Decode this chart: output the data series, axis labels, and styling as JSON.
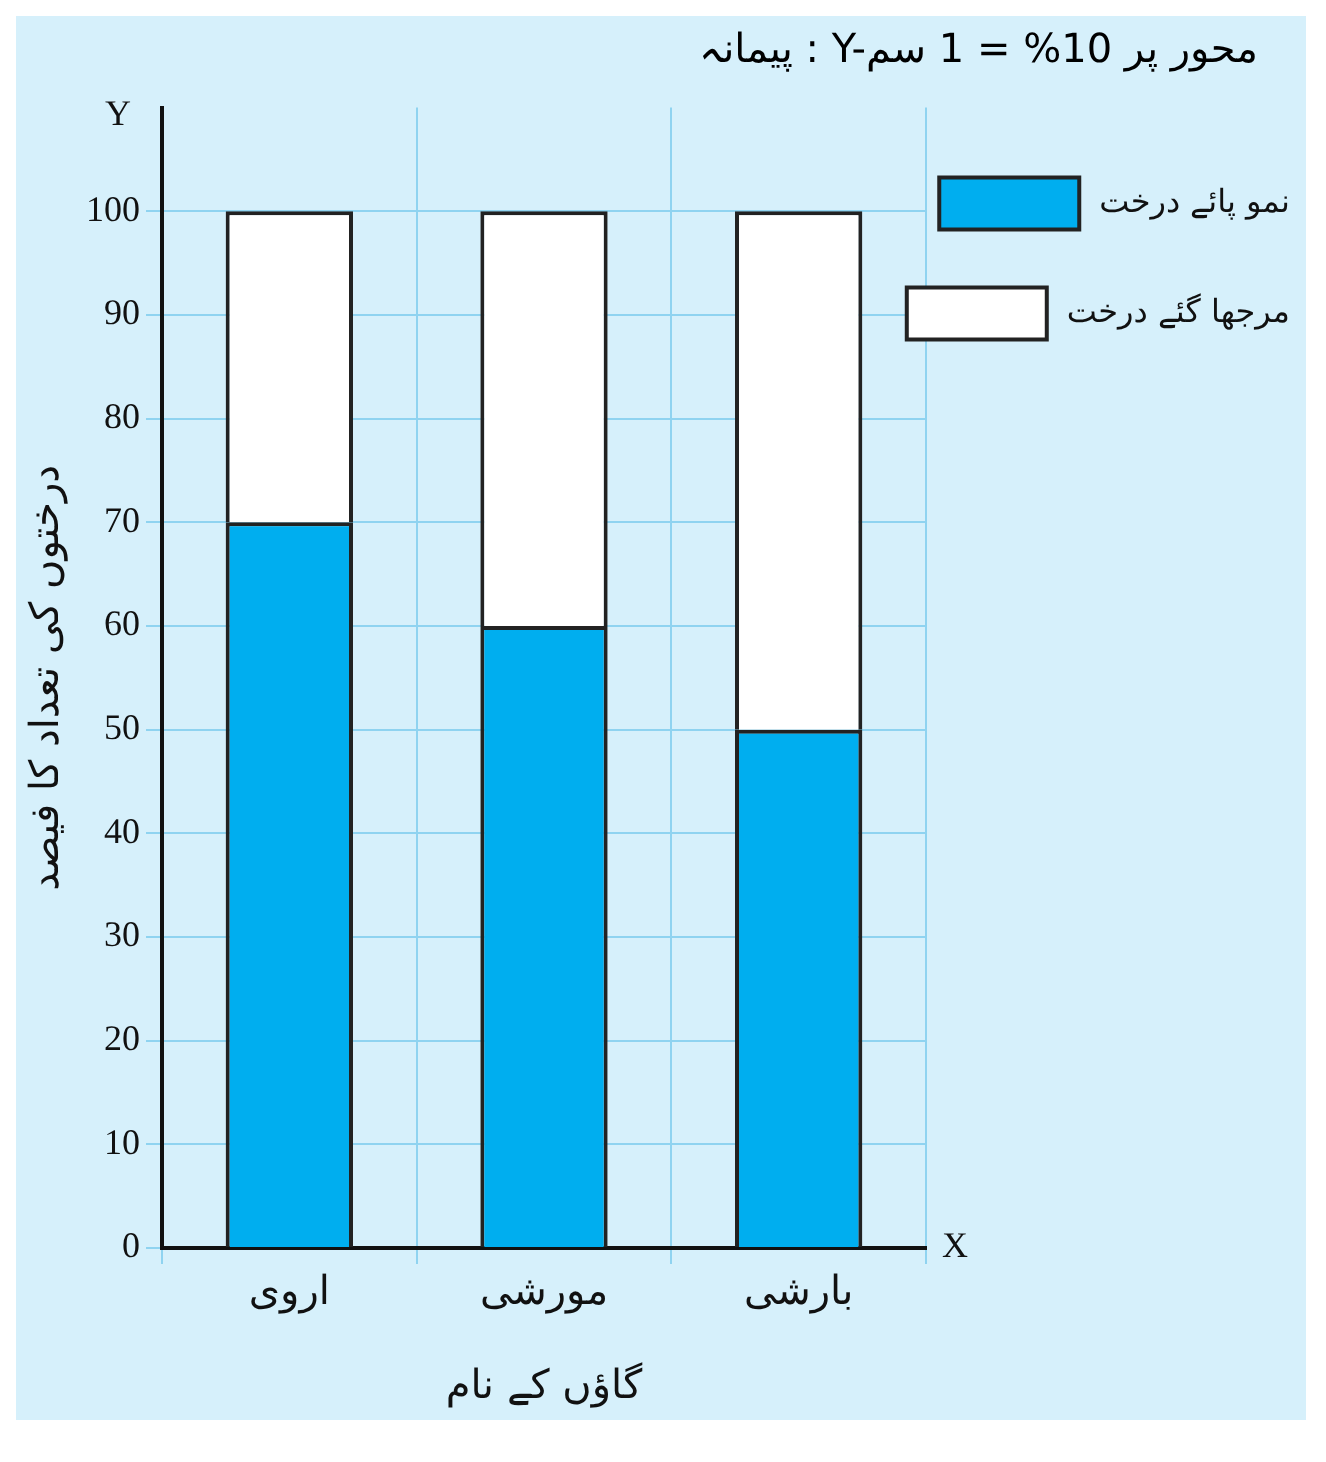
{
  "chart_data": {
    "type": "bar",
    "title": "پیمانہ : Y-محور پر 10% = 1 سم",
    "xlabel": "گاؤں کے نام",
    "ylabel": "درختوں کی تعداد کا فیصد",
    "categories": [
      "اروی",
      "مورشی",
      "بارشی"
    ],
    "series": [
      {
        "name": "نمو پائے درخت",
        "color": "#00aeef",
        "values": [
          70,
          60,
          50
        ]
      },
      {
        "name": "مرجھا گئے درخت",
        "color": "#ffffff",
        "values": [
          30,
          40,
          50
        ]
      }
    ],
    "stacked": true,
    "ylim": [
      0,
      110
    ],
    "yticks": [
      0,
      10,
      20,
      30,
      40,
      50,
      60,
      70,
      80,
      90,
      100
    ],
    "grid": true,
    "legend": "top right",
    "annotations": [
      "X",
      "Y"
    ]
  }
}
